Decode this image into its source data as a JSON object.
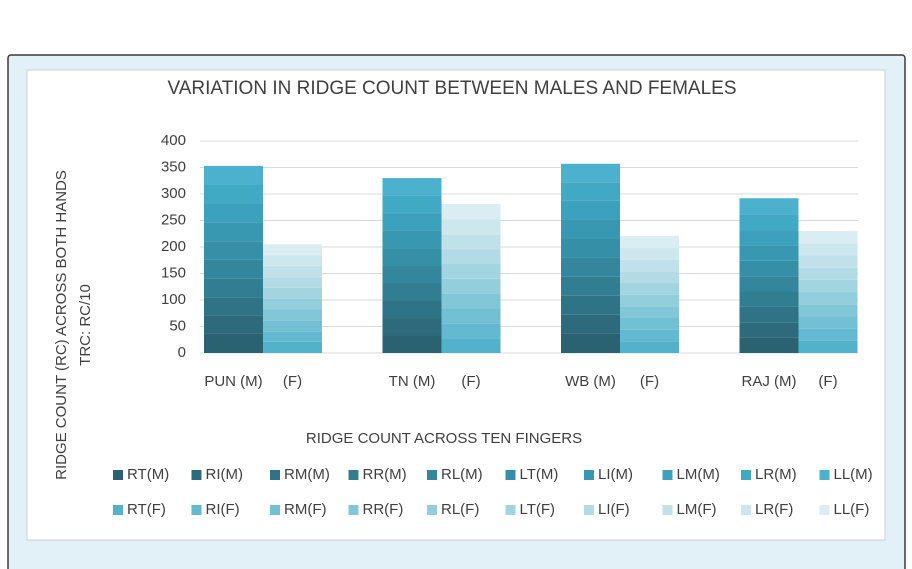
{
  "chart_data": {
    "type": "stacked_bar",
    "title": "VARIATION IN RIDGE COUNT BETWEEN MALES AND FEMALES",
    "y_label": [
      "RIDGE COUNT (RC) ACROSS BOTH HANDS",
      "TRC: RC/10"
    ],
    "x_label": "RIDGE COUNT ACROSS TEN FINGERS",
    "categories": [
      "PUN (M)",
      "(F)",
      "TN (M)",
      "(F)",
      "WB (M)",
      "(F)",
      "RAJ (M)",
      "(F)"
    ],
    "ylim": [
      0,
      400
    ],
    "yticks": [
      0,
      50,
      100,
      150,
      200,
      250,
      300,
      350,
      400
    ],
    "grid": true,
    "series": [
      {
        "name": "RT(M)",
        "color": "#2b6271",
        "values": [
          36,
          null,
          33,
          null,
          36,
          null,
          29,
          null
        ]
      },
      {
        "name": "RI(M)",
        "color": "#2d6b7c",
        "values": [
          35,
          null,
          33,
          null,
          36,
          null,
          29,
          null
        ]
      },
      {
        "name": "RM(M)",
        "color": "#2f7486",
        "values": [
          34,
          null,
          33,
          null,
          36,
          null,
          29,
          null
        ]
      },
      {
        "name": "RR(M)",
        "color": "#317d91",
        "values": [
          35,
          null,
          33,
          null,
          36,
          null,
          29,
          null
        ]
      },
      {
        "name": "RL(M)",
        "color": "#33869c",
        "values": [
          36,
          null,
          33,
          null,
          36,
          null,
          29,
          null
        ]
      },
      {
        "name": "LT(M)",
        "color": "#358fa7",
        "values": [
          35,
          null,
          33,
          null,
          36,
          null,
          29,
          null
        ]
      },
      {
        "name": "LI(M)",
        "color": "#3898b1",
        "values": [
          35,
          null,
          33,
          null,
          36,
          null,
          29,
          null
        ]
      },
      {
        "name": "LM(M)",
        "color": "#3ca1bc",
        "values": [
          36,
          null,
          33,
          null,
          35,
          null,
          29,
          null
        ]
      },
      {
        "name": "LR(M)",
        "color": "#42a9c5",
        "values": [
          35,
          null,
          33,
          null,
          35,
          null,
          30,
          null
        ]
      },
      {
        "name": "LL(M)",
        "color": "#4bb1cc",
        "values": [
          36,
          null,
          33,
          null,
          35,
          null,
          30,
          null
        ]
      },
      {
        "name": "RT(F)",
        "color": "#52b2cb",
        "values": [
          null,
          21,
          null,
          28,
          null,
          22,
          null,
          23
        ]
      },
      {
        "name": "RI(F)",
        "color": "#62b9d0",
        "values": [
          null,
          20,
          null,
          28,
          null,
          22,
          null,
          23
        ]
      },
      {
        "name": "RM(F)",
        "color": "#72c0d4",
        "values": [
          null,
          20,
          null,
          28,
          null,
          22,
          null,
          23
        ]
      },
      {
        "name": "RR(F)",
        "color": "#82c7d8",
        "values": [
          null,
          21,
          null,
          28,
          null,
          22,
          null,
          23
        ]
      },
      {
        "name": "RL(F)",
        "color": "#93cedd",
        "values": [
          null,
          20,
          null,
          28,
          null,
          22,
          null,
          23
        ]
      },
      {
        "name": "LT(F)",
        "color": "#a3d5e1",
        "values": [
          null,
          21,
          null,
          28,
          null,
          22,
          null,
          23
        ]
      },
      {
        "name": "LI(F)",
        "color": "#b2dbe5",
        "values": [
          null,
          20,
          null,
          28,
          null,
          22,
          null,
          23
        ]
      },
      {
        "name": "LM(F)",
        "color": "#c0e1ea",
        "values": [
          null,
          21,
          null,
          28,
          null,
          22,
          null,
          23
        ]
      },
      {
        "name": "LR(F)",
        "color": "#cde7ee",
        "values": [
          null,
          20,
          null,
          28,
          null,
          22,
          null,
          23
        ]
      },
      {
        "name": "LL(F)",
        "color": "#d9edf2",
        "values": [
          null,
          21,
          null,
          29,
          null,
          23,
          null,
          23
        ]
      }
    ]
  }
}
